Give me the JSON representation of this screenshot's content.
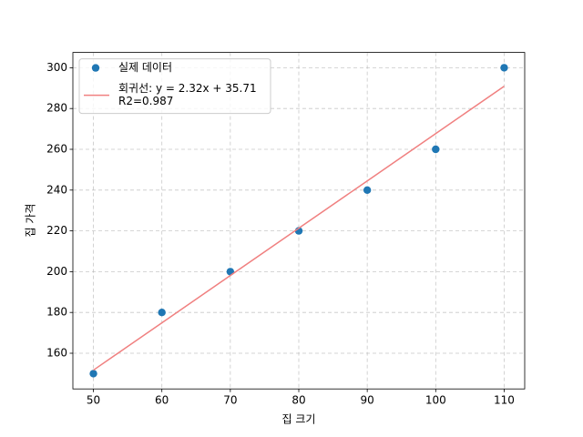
{
  "chart_data": {
    "type": "scatter",
    "xlabel": "집 크기",
    "ylabel": "집 가격",
    "x": [
      50,
      60,
      70,
      80,
      90,
      100,
      110
    ],
    "series": [
      {
        "name": "실제 데이터",
        "type": "scatter",
        "color": "#1f77b4",
        "values": [
          150,
          180,
          200,
          220,
          240,
          260,
          300
        ]
      },
      {
        "name": "회귀선: y = 2.32x + 35.71\nR2=0.987",
        "type": "line",
        "color": "#f08080",
        "values": [
          151.71,
          174.91,
          198.11,
          221.31,
          244.51,
          267.71,
          290.91
        ]
      }
    ],
    "xlim": [
      47,
      113
    ],
    "xticks": [
      50,
      60,
      70,
      80,
      90,
      100,
      110
    ],
    "ylim": [
      142.5,
      307.5
    ],
    "yticks": [
      160,
      180,
      200,
      220,
      240,
      260,
      280,
      300
    ],
    "grid": true,
    "legend": "upper left"
  }
}
